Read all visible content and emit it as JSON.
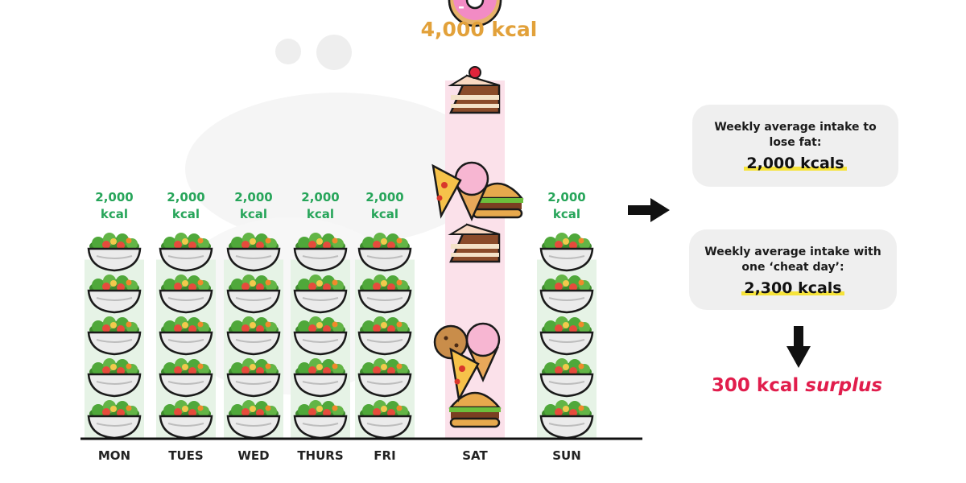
{
  "chart_data": {
    "type": "bar",
    "categories": [
      "MON",
      "TUES",
      "WED",
      "THURS",
      "FRI",
      "SAT",
      "SUN"
    ],
    "values": [
      2000,
      2000,
      2000,
      2000,
      2000,
      4000,
      2000
    ],
    "value_labels": [
      "2,000 kcal",
      "2,000 kcal",
      "2,000 kcal",
      "2,000 kcal",
      "2,000 kcal",
      "4,000 kcal",
      "2,000 kcal"
    ],
    "ylim": [
      0,
      4000
    ],
    "grid": false,
    "colors": {
      "normal": "#27a55a",
      "cheat": "#e2a13a"
    }
  },
  "saturday_label": "4,000 kcal",
  "cards": {
    "lose_fat": {
      "title": "Weekly average intake to lose fat:",
      "value": "2,000 kcals"
    },
    "cheat_day": {
      "title": "Weekly average intake with one ‘cheat day’:",
      "value": "2,300 kcals"
    }
  },
  "surplus": {
    "amount": "300 kcal",
    "word": "surplus"
  },
  "icons": {
    "normal_day": "salad-bowl-icon",
    "cheat_day": [
      "cake-slice-icon",
      "donut-icon",
      "pizza-slice-icon",
      "ice-cream-icon",
      "burger-icon",
      "cookie-icon"
    ]
  },
  "accent_colors": {
    "highlight": "#f6e33a",
    "surplus": "#e11d4c"
  }
}
